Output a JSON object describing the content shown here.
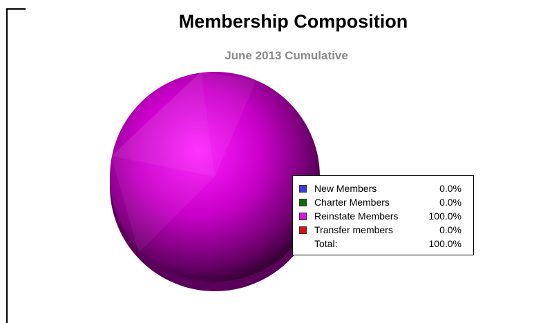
{
  "chart_data": {
    "type": "pie",
    "title": "Membership Composition",
    "subtitle": "June 2013 Cumulative",
    "categories": [
      "New Members",
      "Charter Members",
      "Reinstate Members",
      "Transfer members"
    ],
    "values": [
      0.0,
      0.0,
      100.0,
      0.0
    ],
    "value_labels": [
      "0.0%",
      "0.0%",
      "100.0%",
      "0.0%"
    ],
    "colors": [
      "#3a3adf",
      "#0a6a0a",
      "#e010e0",
      "#e01010"
    ],
    "total_label": "Total:",
    "total_value": "100.0%",
    "legend_position": "right"
  }
}
